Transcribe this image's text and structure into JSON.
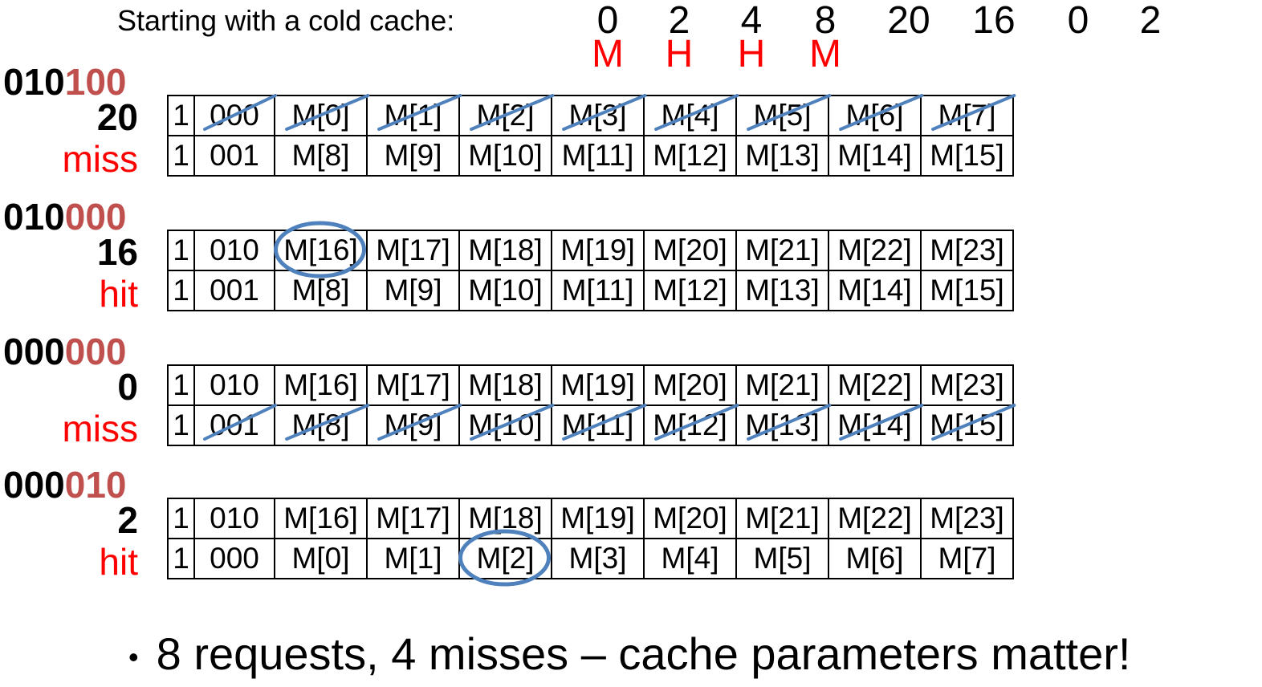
{
  "header": {
    "label": "Starting with a cold cache:",
    "sequence": [
      "0",
      "2",
      "4",
      "8",
      "20",
      "16",
      "0",
      "2"
    ],
    "results": [
      "M",
      "H",
      "H",
      "M"
    ]
  },
  "steps": [
    {
      "addr_hi": "010",
      "addr_lo": "100",
      "decimal": "20",
      "result": "miss",
      "rows": [
        {
          "valid": "1",
          "tag": "000",
          "words": [
            "M[0]",
            "M[1]",
            "M[2]",
            "M[3]",
            "M[4]",
            "M[5]",
            "M[6]",
            "M[7]"
          ],
          "struck": true
        },
        {
          "valid": "1",
          "tag": "001",
          "words": [
            "M[8]",
            "M[9]",
            "M[10]",
            "M[11]",
            "M[12]",
            "M[13]",
            "M[14]",
            "M[15]"
          ],
          "struck": false
        }
      ]
    },
    {
      "addr_hi": "010",
      "addr_lo": "000",
      "decimal": "16",
      "result": "hit",
      "rows": [
        {
          "valid": "1",
          "tag": "010",
          "words": [
            "M[16]",
            "M[17]",
            "M[18]",
            "M[19]",
            "M[20]",
            "M[21]",
            "M[22]",
            "M[23]"
          ],
          "struck": false
        },
        {
          "valid": "1",
          "tag": "001",
          "words": [
            "M[8]",
            "M[9]",
            "M[10]",
            "M[11]",
            "M[12]",
            "M[13]",
            "M[14]",
            "M[15]"
          ],
          "struck": false
        }
      ]
    },
    {
      "addr_hi": "000",
      "addr_lo": "000",
      "decimal": "0",
      "result": "miss",
      "rows": [
        {
          "valid": "1",
          "tag": "010",
          "words": [
            "M[16]",
            "M[17]",
            "M[18]",
            "M[19]",
            "M[20]",
            "M[21]",
            "M[22]",
            "M[23]"
          ],
          "struck": false
        },
        {
          "valid": "1",
          "tag": "001",
          "words": [
            "M[8]",
            "M[9]",
            "M[10]",
            "M[11]",
            "M[12]",
            "M[13]",
            "M[14]",
            "M[15]"
          ],
          "struck": true
        }
      ]
    },
    {
      "addr_hi": "000",
      "addr_lo": "010",
      "decimal": "2",
      "result": "hit",
      "rows": [
        {
          "valid": "1",
          "tag": "010",
          "words": [
            "M[16]",
            "M[17]",
            "M[18]",
            "M[19]",
            "M[20]",
            "M[21]",
            "M[22]",
            "M[23]"
          ],
          "struck": false
        },
        {
          "valid": "1",
          "tag": "000",
          "words": [
            "M[0]",
            "M[1]",
            "M[2]",
            "M[3]",
            "M[4]",
            "M[5]",
            "M[6]",
            "M[7]"
          ],
          "struck": false
        }
      ]
    }
  ],
  "highlights": [
    {
      "step": 1,
      "row": 0,
      "word": 0
    },
    {
      "step": 3,
      "row": 1,
      "word": 2
    }
  ],
  "footer": {
    "bullet_text": "8 requests, 4 misses – cache parameters matter!"
  },
  "colors": {
    "address_offset": "#c0504d",
    "result": "#ff0000",
    "annotation": "#4f81bd"
  }
}
